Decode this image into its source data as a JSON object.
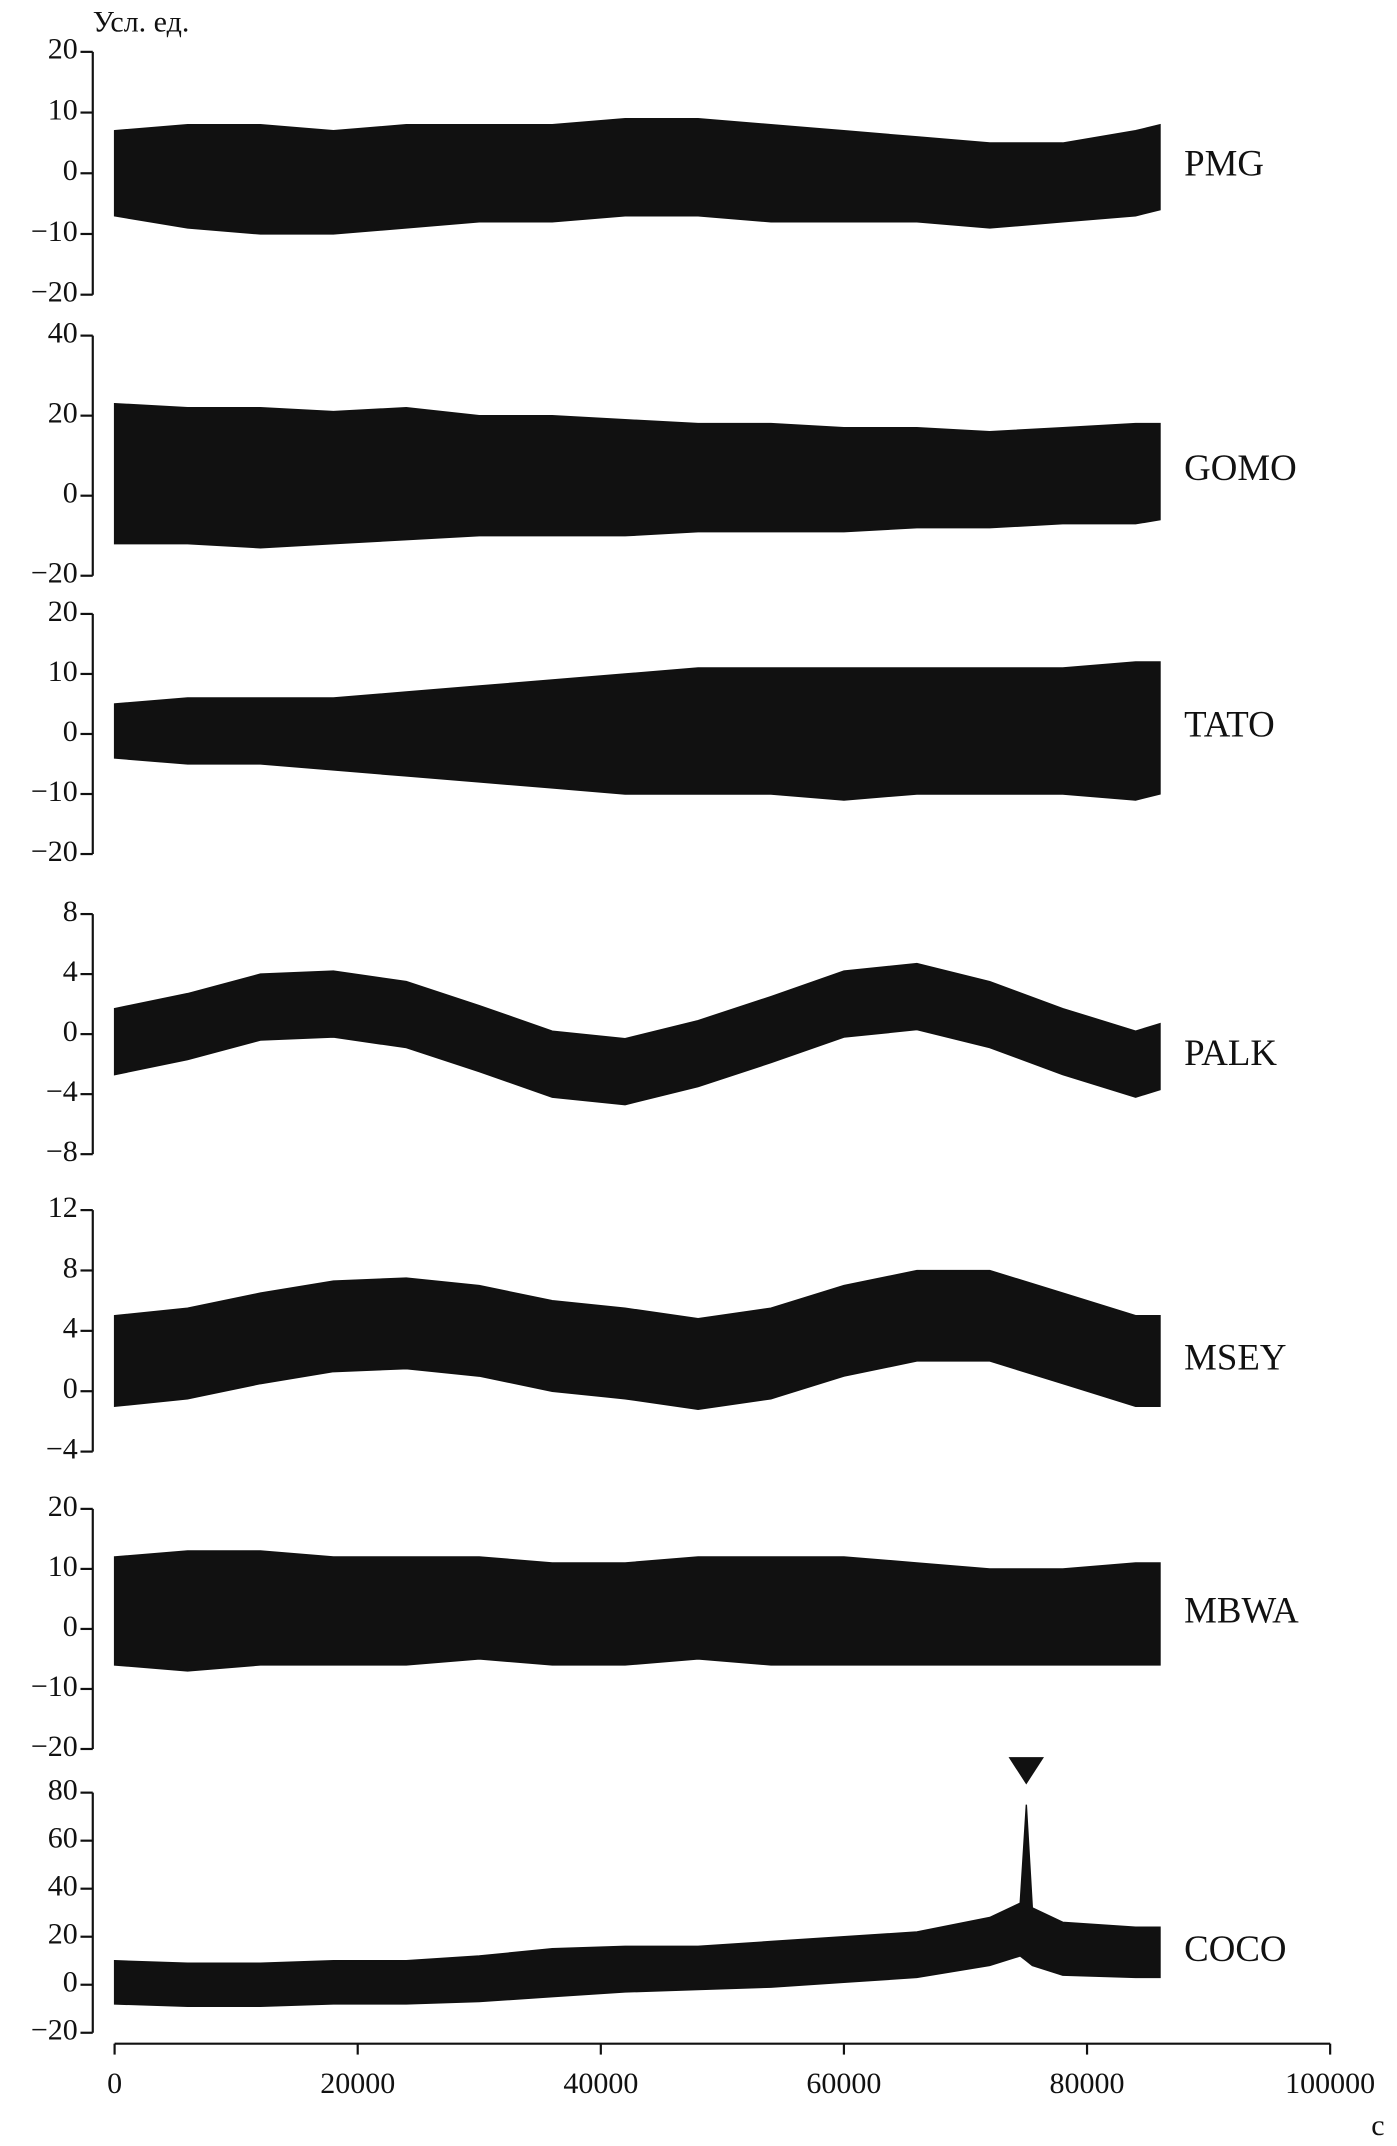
{
  "chart_data": [
    {
      "type": "area",
      "label": "PMG",
      "ylabel": "Усл. ед.",
      "color": "#111111",
      "x": [
        0,
        6000,
        12000,
        18000,
        24000,
        30000,
        36000,
        42000,
        48000,
        54000,
        60000,
        66000,
        72000,
        78000,
        84000,
        86000
      ],
      "high": [
        7,
        8,
        8,
        7,
        8,
        8,
        8,
        9,
        9,
        8,
        7,
        6,
        5,
        5,
        7,
        8
      ],
      "low": [
        -7,
        -9,
        -10,
        -10,
        -9,
        -8,
        -8,
        -7,
        -7,
        -8,
        -8,
        -8,
        -9,
        -8,
        -7,
        -6
      ],
      "ylim": [
        -20,
        20
      ],
      "yticks": [
        {
          "value": -20,
          "label": "−20"
        },
        {
          "value": -10,
          "label": "−10"
        },
        0,
        10,
        20
      ]
    },
    {
      "type": "area",
      "label": "GOMO",
      "color": "#111111",
      "x": [
        0,
        6000,
        12000,
        18000,
        24000,
        30000,
        36000,
        42000,
        48000,
        54000,
        60000,
        66000,
        72000,
        78000,
        84000,
        86000
      ],
      "high": [
        23,
        22,
        22,
        21,
        22,
        20,
        20,
        19,
        18,
        18,
        17,
        17,
        16,
        17,
        18,
        18
      ],
      "low": [
        -12,
        -12,
        -13,
        -12,
        -11,
        -10,
        -10,
        -10,
        -9,
        -9,
        -9,
        -8,
        -8,
        -7,
        -7,
        -6
      ],
      "ylim": [
        -20,
        40
      ],
      "yticks": [
        {
          "value": -20,
          "label": "−20"
        },
        0,
        20,
        40
      ]
    },
    {
      "type": "area",
      "label": "TATO",
      "color": "#111111",
      "x": [
        0,
        6000,
        12000,
        18000,
        24000,
        30000,
        36000,
        42000,
        48000,
        54000,
        60000,
        66000,
        72000,
        78000,
        84000,
        86000
      ],
      "high": [
        5,
        6,
        6,
        6,
        7,
        8,
        9,
        10,
        11,
        11,
        11,
        11,
        11,
        11,
        12,
        12
      ],
      "low": [
        -4,
        -5,
        -5,
        -6,
        -7,
        -8,
        -9,
        -10,
        -10,
        -10,
        -11,
        -10,
        -10,
        -10,
        -11,
        -10
      ],
      "ylim": [
        -20,
        20
      ],
      "yticks": [
        {
          "value": -20,
          "label": "−20"
        },
        {
          "value": -10,
          "label": "−10"
        },
        0,
        10,
        20
      ]
    },
    {
      "type": "area",
      "label": "PALK",
      "color": "#111111",
      "x": [
        0,
        6000,
        12000,
        18000,
        24000,
        30000,
        36000,
        42000,
        48000,
        54000,
        60000,
        66000,
        72000,
        78000,
        84000,
        86000
      ],
      "high": [
        1.7,
        2.7,
        4,
        4.2,
        3.5,
        1.9,
        0.2,
        -0.3,
        0.9,
        2.5,
        4.2,
        4.7,
        3.5,
        1.7,
        0.2,
        0.7
      ],
      "low": [
        -2.7,
        -1.7,
        -0.4,
        -0.2,
        -0.9,
        -2.5,
        -4.2,
        -4.7,
        -3.5,
        -1.9,
        -0.2,
        0.3,
        -0.9,
        -2.7,
        -4.2,
        -3.7
      ],
      "ylim": [
        -8,
        8
      ],
      "yticks": [
        {
          "value": -8,
          "label": "−8"
        },
        {
          "value": -4,
          "label": "−4"
        },
        0,
        4,
        8
      ]
    },
    {
      "type": "area",
      "label": "MSEY",
      "color": "#111111",
      "x": [
        0,
        6000,
        12000,
        18000,
        24000,
        30000,
        36000,
        42000,
        48000,
        54000,
        60000,
        66000,
        72000,
        78000,
        84000,
        86000
      ],
      "high": [
        5,
        5.5,
        6.5,
        7.3,
        7.5,
        7,
        6,
        5.5,
        4.8,
        5.5,
        7,
        8,
        8,
        6.5,
        5,
        5
      ],
      "low": [
        -1,
        -0.5,
        0.5,
        1.3,
        1.5,
        1,
        0,
        -0.5,
        -1.2,
        -0.5,
        1,
        2,
        2,
        0.5,
        -1,
        -1
      ],
      "ylim": [
        -4,
        12
      ],
      "yticks": [
        {
          "value": -4,
          "label": "−4"
        },
        0,
        4,
        8,
        12
      ]
    },
    {
      "type": "area",
      "label": "MBWA",
      "color": "#111111",
      "x": [
        0,
        6000,
        12000,
        18000,
        24000,
        30000,
        36000,
        42000,
        48000,
        54000,
        60000,
        66000,
        72000,
        78000,
        84000,
        86000
      ],
      "high": [
        12,
        13,
        13,
        12,
        12,
        12,
        11,
        11,
        12,
        12,
        12,
        11,
        10,
        10,
        11,
        11
      ],
      "low": [
        -6,
        -7,
        -6,
        -6,
        -6,
        -5,
        -6,
        -6,
        -5,
        -6,
        -6,
        -6,
        -6,
        -6,
        -6,
        -6
      ],
      "ylim": [
        -20,
        20
      ],
      "yticks": [
        {
          "value": -20,
          "label": "−20"
        },
        {
          "value": -10,
          "label": "−10"
        },
        0,
        10,
        20
      ]
    },
    {
      "type": "area",
      "label": "COCO",
      "xlabel": "с",
      "color": "#111111",
      "x": [
        0,
        6000,
        12000,
        18000,
        24000,
        30000,
        36000,
        42000,
        48000,
        54000,
        60000,
        66000,
        72000,
        74500,
        75000,
        75500,
        78000,
        84000,
        86000
      ],
      "high": [
        10,
        9,
        9,
        10,
        10,
        12,
        15,
        16,
        16,
        18,
        20,
        22,
        28,
        34,
        75,
        32,
        26,
        24,
        24
      ],
      "low": [
        -8,
        -9,
        -9,
        -8,
        -8,
        -7,
        -5,
        -3,
        -2,
        -1,
        1,
        3,
        8,
        12,
        10,
        8,
        4,
        3,
        3
      ],
      "marker_x": 75000,
      "ylim": [
        -20,
        80
      ],
      "yticks": [
        {
          "value": -20,
          "label": "−20"
        },
        0,
        20,
        40,
        60,
        80
      ],
      "xlim": [
        0,
        100000
      ],
      "xticks": [
        0,
        20000,
        40000,
        60000,
        80000,
        100000
      ]
    }
  ]
}
